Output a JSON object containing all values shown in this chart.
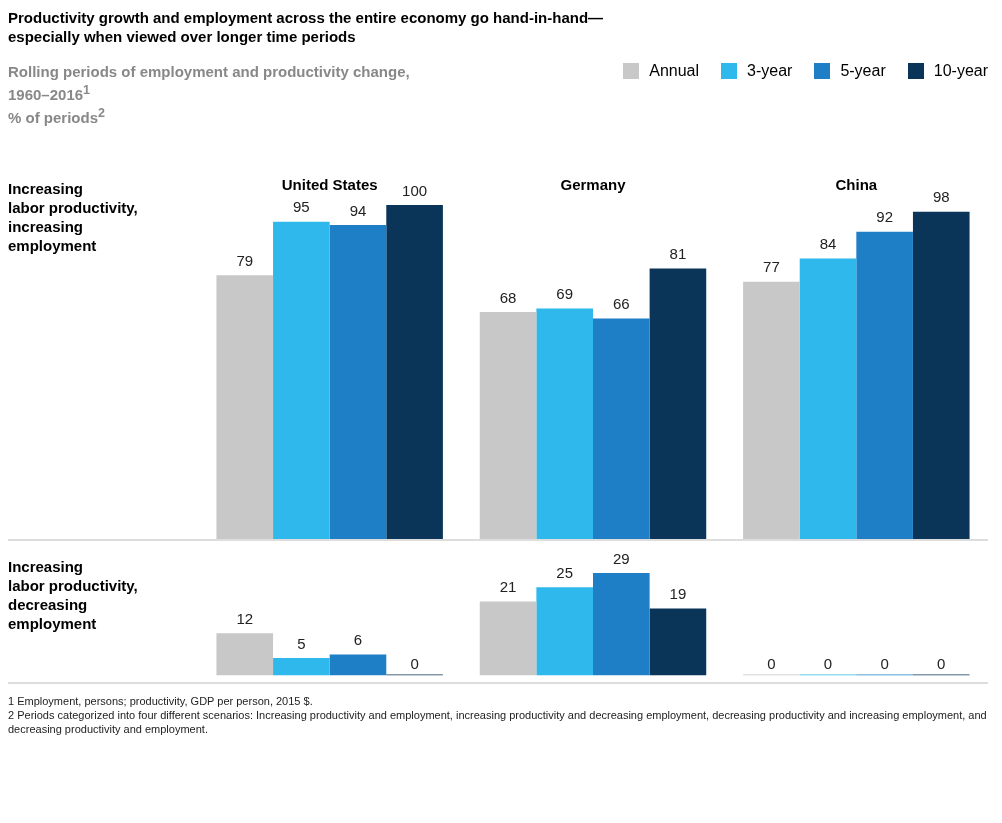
{
  "chart_data": [
    {
      "type": "bar",
      "title": "Productivity growth and employment across the entire economy go hand-in-hand—\nespecially when viewed over longer time periods",
      "subtitle": "Rolling periods of employment and productivity change,\n1960–2016$^{1}$\n% of periods$^{2}$",
      "ylabel": "Increasing\nlabor productivity,\nincreasing\nemployment",
      "categories": [
        "United States",
        "Germany",
        "China"
      ],
      "series": [
        {
          "name": "Annual",
          "color": "#c8c8c8",
          "values": [
            79,
            68,
            77
          ]
        },
        {
          "name": "3-year",
          "color": "#2eb8ec",
          "values": [
            95,
            69,
            84
          ]
        },
        {
          "name": "5-year",
          "color": "#1f7fc6",
          "values": [
            94,
            66,
            92
          ]
        },
        {
          "name": "10-year",
          "color": "#0b3558",
          "values": [
            100,
            81,
            98
          ]
        }
      ],
      "ylim": [
        0,
        100
      ],
      "data_labels": true,
      "legend": "top right",
      "tick_labels": "x"
    },
    {
      "type": "bar",
      "ylabel": "Increasing\nlabor productivity,\ndecreasing\nemployment",
      "categories": [
        null,
        null,
        null
      ],
      "series": [
        {
          "color": "#c8c8c8",
          "values": [
            12,
            21,
            0
          ]
        },
        {
          "color": "#2eb8ec",
          "values": [
            5,
            25,
            0
          ]
        },
        {
          "color": "#1f7fc6",
          "values": [
            6,
            29,
            0
          ]
        },
        {
          "color": "#0b3558",
          "values": [
            0,
            19,
            0
          ]
        }
      ],
      "data_labels": true,
      "tick_labels": false,
      "annotations": [
        "1  Employment, persons; productivity, GDP per person, 2015 $.",
        "2  Periods categorized into four different scenarios: Increasing productivity and employment, increasing productivity and decreasing employment, decreasing productivity and increasing employment, and decreasing productivity and employment."
      ]
    }
  ]
}
